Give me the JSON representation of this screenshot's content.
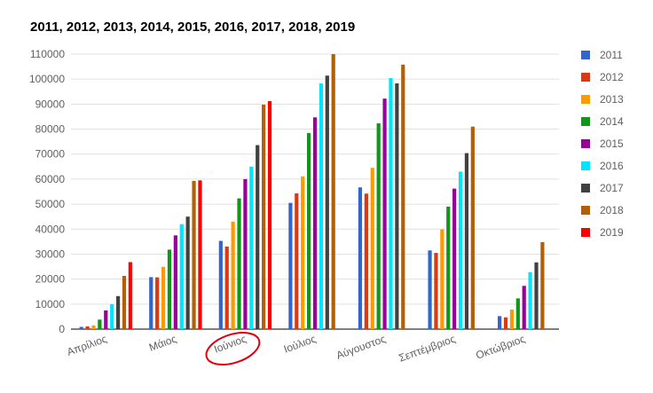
{
  "chart_data": {
    "type": "bar",
    "title": "2011, 2012, 2013, 2014, 2015, 2016, 2017, 2018, 2019",
    "xlabel": "",
    "ylabel": "",
    "ylim": [
      0,
      110000
    ],
    "yticks": [
      "0",
      "10000",
      "20000",
      "30000",
      "40000",
      "50000",
      "60000",
      "70000",
      "80000",
      "90000",
      "100000",
      "110000"
    ],
    "grid": true,
    "legend_position": "right",
    "categories": [
      "Απρίλιος",
      "Μάιος",
      "Ιούνιος",
      "Ιούλιος",
      "Αύγουστος",
      "Σεπτέμβριος",
      "Οκτώβριος"
    ],
    "highlighted_category": "Ιούνιος",
    "highlight_color": "#e0000f",
    "series": [
      {
        "name": "2011",
        "color": "#3366cc",
        "values": [
          900,
          20800,
          35300,
          50500,
          56700,
          31500,
          5200
        ]
      },
      {
        "name": "2012",
        "color": "#dc3912",
        "values": [
          1100,
          20700,
          33000,
          54300,
          54200,
          30500,
          4700
        ]
      },
      {
        "name": "2013",
        "color": "#ff9900",
        "values": [
          1500,
          24900,
          43000,
          61100,
          64500,
          39900,
          7800
        ]
      },
      {
        "name": "2014",
        "color": "#109618",
        "values": [
          3800,
          31800,
          52300,
          78400,
          82300,
          49000,
          12300
        ]
      },
      {
        "name": "2015",
        "color": "#990099",
        "values": [
          7500,
          37500,
          60000,
          84700,
          92200,
          56200,
          17300
        ]
      },
      {
        "name": "2016",
        "color": "#00e5ff",
        "values": [
          10000,
          42000,
          65000,
          98300,
          100400,
          63000,
          22800
        ]
      },
      {
        "name": "2017",
        "color": "#404040",
        "values": [
          13200,
          45000,
          73600,
          101400,
          98300,
          70400,
          26700
        ]
      },
      {
        "name": "2018",
        "color": "#b45f06",
        "values": [
          21300,
          59300,
          89800,
          110000,
          105800,
          81000,
          34800
        ]
      },
      {
        "name": "2019",
        "color": "#ff0000",
        "values": [
          26800,
          59500,
          91200,
          null,
          null,
          null,
          null
        ]
      }
    ]
  }
}
